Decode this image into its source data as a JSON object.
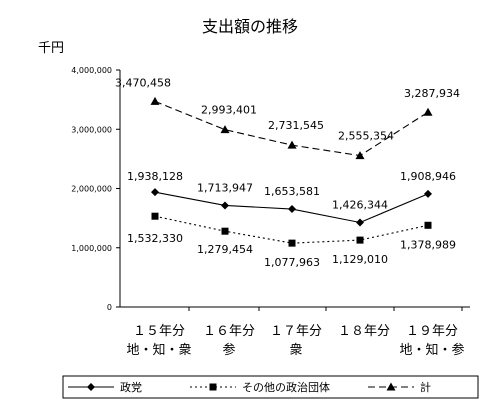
{
  "chart_data": {
    "type": "line",
    "title": "支出額の推移",
    "ylabel": "千円",
    "ylim": [
      0,
      4000000
    ],
    "yticks": [
      0,
      1000000,
      2000000,
      3000000,
      4000000
    ],
    "ytick_labels": [
      "0",
      "1,000,000",
      "2,000,000",
      "3,000,000",
      "4,000,000"
    ],
    "categories": [
      "１５年分",
      "１６年分",
      "１７年分",
      "１８年分",
      "１９年分"
    ],
    "category_sublabels": [
      "地・知・衆",
      "参",
      "衆",
      "",
      "地・知・参"
    ],
    "grid": false,
    "legend_position": "bottom",
    "series": [
      {
        "name": "政党",
        "values": [
          1938128,
          1713947,
          1653581,
          1426344,
          1908946
        ],
        "labels": [
          "1,938,128",
          "1,713,947",
          "1,653,581",
          "1,426,344",
          "1,908,946"
        ],
        "line_style": "solid",
        "marker": "diamond"
      },
      {
        "name": "その他の政治団体",
        "values": [
          1532330,
          1279454,
          1077963,
          1129010,
          1378989
        ],
        "labels": [
          "1,532,330",
          "1,279,454",
          "1,077,963",
          "1,129,010",
          "1,378,989"
        ],
        "line_style": "dotted",
        "marker": "square"
      },
      {
        "name": "計",
        "values": [
          3470458,
          2993401,
          2731545,
          2555354,
          3287934
        ],
        "labels": [
          "3,470,458",
          "2,993,401",
          "2,731,545",
          "2,555,354",
          "3,287,934"
        ],
        "line_style": "dashed",
        "marker": "triangle"
      }
    ]
  }
}
